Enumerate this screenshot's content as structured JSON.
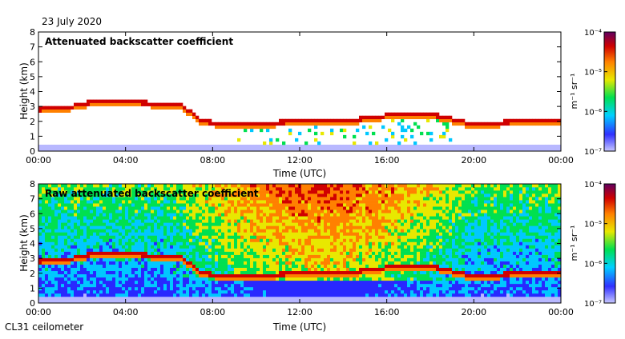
{
  "date_label": "23 July 2020",
  "footer_label": "CL31 ceilometer",
  "colors": {
    "scale": [
      "#b8b8ff",
      "#2828ff",
      "#00c8ff",
      "#00e050",
      "#e8e800",
      "#ff8000",
      "#d00000",
      "#600060"
    ],
    "background": "#ffffff",
    "axis": "#000000"
  },
  "chart_data": [
    {
      "type": "heatmap",
      "title": "Attenuated backscatter coefficient",
      "xlabel": "Time (UTC)",
      "ylabel": "Height (km)",
      "xlim": [
        0,
        24
      ],
      "ylim": [
        0,
        8
      ],
      "x_ticks": [
        "00:00",
        "04:00",
        "08:00",
        "12:00",
        "16:00",
        "20:00",
        "00:00"
      ],
      "y_ticks": [
        "0",
        "1",
        "2",
        "3",
        "4",
        "5",
        "6",
        "7",
        "8"
      ],
      "colorbar": {
        "label": "m⁻¹ sr⁻¹",
        "ticks": [
          "10⁻⁷",
          "10⁻⁶",
          "10⁻⁵",
          "10⁻⁴"
        ],
        "range_exp": [
          -7,
          -4
        ]
      },
      "cloud_base_km": [
        {
          "t": 0.0,
          "h": 2.8
        },
        {
          "t": 1.5,
          "h": 3.0
        },
        {
          "t": 2.5,
          "h": 3.3
        },
        {
          "t": 4.0,
          "h": 3.3
        },
        {
          "t": 5.5,
          "h": 3.2
        },
        {
          "t": 6.5,
          "h": 3.2
        },
        {
          "t": 7.5,
          "h": 2.0
        },
        {
          "t": 9.0,
          "h": 1.8
        },
        {
          "t": 10.5,
          "h": 1.9
        },
        {
          "t": 12.0,
          "h": 2.0
        },
        {
          "t": 14.0,
          "h": 2.0
        },
        {
          "t": 16.0,
          "h": 2.4
        },
        {
          "t": 18.0,
          "h": 2.5
        },
        {
          "t": 20.0,
          "h": 1.8
        },
        {
          "t": 22.0,
          "h": 2.0
        },
        {
          "t": 24.0,
          "h": 2.1
        }
      ],
      "noise_masked": true
    },
    {
      "type": "heatmap",
      "title": "Raw attenuated backscatter coefficient",
      "xlabel": "Time (UTC)",
      "ylabel": "Height (km)",
      "xlim": [
        0,
        24
      ],
      "ylim": [
        0,
        8
      ],
      "x_ticks": [
        "00:00",
        "04:00",
        "08:00",
        "12:00",
        "16:00",
        "20:00",
        "00:00"
      ],
      "y_ticks": [
        "0",
        "1",
        "2",
        "3",
        "4",
        "5",
        "6",
        "7",
        "8"
      ],
      "colorbar": {
        "label": "m⁻¹ sr⁻¹",
        "ticks": [
          "10⁻⁷",
          "10⁻⁶",
          "10⁻⁵",
          "10⁻⁴"
        ],
        "range_exp": [
          -7,
          -4
        ]
      },
      "cloud_base_km": [
        {
          "t": 0.0,
          "h": 2.8
        },
        {
          "t": 1.5,
          "h": 3.0
        },
        {
          "t": 2.5,
          "h": 3.3
        },
        {
          "t": 4.0,
          "h": 3.3
        },
        {
          "t": 5.5,
          "h": 3.2
        },
        {
          "t": 6.5,
          "h": 3.2
        },
        {
          "t": 7.5,
          "h": 2.0
        },
        {
          "t": 9.0,
          "h": 1.8
        },
        {
          "t": 10.5,
          "h": 1.9
        },
        {
          "t": 12.0,
          "h": 2.0
        },
        {
          "t": 14.0,
          "h": 2.0
        },
        {
          "t": 16.0,
          "h": 2.4
        },
        {
          "t": 18.0,
          "h": 2.5
        },
        {
          "t": 20.0,
          "h": 1.8
        },
        {
          "t": 22.0,
          "h": 2.0
        },
        {
          "t": 24.0,
          "h": 2.1
        }
      ],
      "noise_masked": false
    }
  ]
}
